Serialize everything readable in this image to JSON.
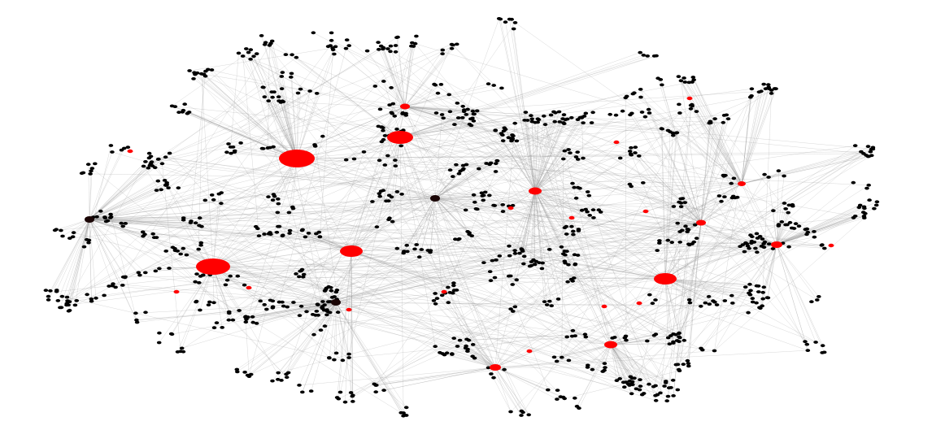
{
  "colors": {
    "background": "#ffffff",
    "edge": "#999999",
    "ordinary_node": "#000000",
    "highlighted_node": "#ff0000",
    "dark_hub_node": "#1a0505"
  },
  "legend": [],
  "labels": []
}
